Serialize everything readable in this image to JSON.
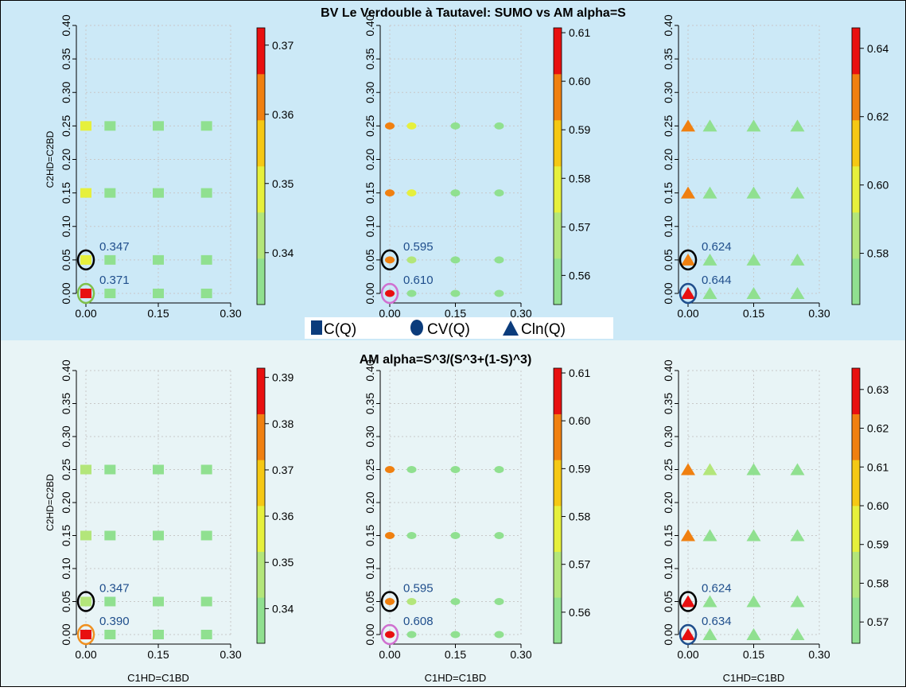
{
  "colors": {
    "top_bg": "#cce9f7",
    "bottom_bg": "#e8f4f6",
    "border": "#000000",
    "annot_text": "#1f4e8c",
    "ramp": [
      "#90e090",
      "#b3e67a",
      "#e6f03c",
      "#f5c814",
      "#f08010",
      "#e81010"
    ]
  },
  "titles": {
    "top": "BV Le Verdouble à Tautavel: SUMO vs AM alpha=S",
    "bottom": "AM alpha=S^3/(S^3+(1-S)^3)"
  },
  "legend": {
    "items": [
      {
        "icon": "square-icon",
        "label": "C(Q)"
      },
      {
        "icon": "circle-icon",
        "label": "CV(Q)"
      },
      {
        "icon": "triangle-icon",
        "label": "Cln(Q)"
      }
    ]
  },
  "chart_data": [
    {
      "id": "top-cq",
      "type": "scatter",
      "marker": "square",
      "ylabel": "C2HD=C2BD",
      "xlabel": "",
      "xticks": [
        "0.00",
        "0.15",
        "0.30"
      ],
      "yticks": [
        "0.00",
        "0.05",
        "0.10",
        "0.15",
        "0.20",
        "0.25",
        "0.30",
        "0.35",
        "0.40"
      ],
      "xlim": [
        0,
        0.3
      ],
      "ylim": [
        0,
        0.4
      ],
      "points": [
        {
          "x": 0,
          "y": 0,
          "c": 5
        },
        {
          "x": 0.05,
          "y": 0,
          "c": 0
        },
        {
          "x": 0.15,
          "y": 0,
          "c": 0
        },
        {
          "x": 0.25,
          "y": 0,
          "c": 0
        },
        {
          "x": 0,
          "y": 0.05,
          "c": 2
        },
        {
          "x": 0.05,
          "y": 0.05,
          "c": 0
        },
        {
          "x": 0.15,
          "y": 0.05,
          "c": 0
        },
        {
          "x": 0.25,
          "y": 0.05,
          "c": 0
        },
        {
          "x": 0,
          "y": 0.15,
          "c": 2
        },
        {
          "x": 0.05,
          "y": 0.15,
          "c": 0
        },
        {
          "x": 0.15,
          "y": 0.15,
          "c": 0
        },
        {
          "x": 0.25,
          "y": 0.15,
          "c": 0
        },
        {
          "x": 0,
          "y": 0.25,
          "c": 2
        },
        {
          "x": 0.05,
          "y": 0.25,
          "c": 0
        },
        {
          "x": 0.15,
          "y": 0.25,
          "c": 0
        },
        {
          "x": 0.25,
          "y": 0.25,
          "c": 0
        }
      ],
      "annotations": [
        {
          "x": 0,
          "y": 0.05,
          "label": "0.347",
          "ring": "#000000"
        },
        {
          "x": 0,
          "y": 0,
          "label": "0.371",
          "ring": "#7fc04a"
        }
      ],
      "colorbar": {
        "ticks": [
          "0.34",
          "0.35",
          "0.36",
          "0.37"
        ],
        "tick_vals": [
          0.34,
          0.35,
          0.36,
          0.37
        ],
        "vmin": 0.3325,
        "vmax": 0.3725
      }
    },
    {
      "id": "top-cvq",
      "type": "scatter",
      "marker": "circle",
      "ylabel": "",
      "xlabel": "",
      "xticks": [
        "0.00",
        "0.15",
        "0.30"
      ],
      "yticks": [
        "0.00",
        "0.05",
        "0.10",
        "0.15",
        "0.20",
        "0.25",
        "0.30",
        "0.35",
        "0.40"
      ],
      "xlim": [
        0,
        0.3
      ],
      "ylim": [
        0,
        0.4
      ],
      "points": [
        {
          "x": 0,
          "y": 0,
          "c": 5
        },
        {
          "x": 0.05,
          "y": 0,
          "c": 0
        },
        {
          "x": 0.15,
          "y": 0,
          "c": 0
        },
        {
          "x": 0.25,
          "y": 0,
          "c": 0
        },
        {
          "x": 0,
          "y": 0.05,
          "c": 4
        },
        {
          "x": 0.05,
          "y": 0.05,
          "c": 1
        },
        {
          "x": 0.15,
          "y": 0.05,
          "c": 0
        },
        {
          "x": 0.25,
          "y": 0.05,
          "c": 0
        },
        {
          "x": 0,
          "y": 0.15,
          "c": 4
        },
        {
          "x": 0.05,
          "y": 0.15,
          "c": 2
        },
        {
          "x": 0.15,
          "y": 0.15,
          "c": 0
        },
        {
          "x": 0.25,
          "y": 0.15,
          "c": 0
        },
        {
          "x": 0,
          "y": 0.25,
          "c": 4
        },
        {
          "x": 0.05,
          "y": 0.25,
          "c": 2
        },
        {
          "x": 0.15,
          "y": 0.25,
          "c": 0
        },
        {
          "x": 0.25,
          "y": 0.25,
          "c": 0
        }
      ],
      "annotations": [
        {
          "x": 0,
          "y": 0.05,
          "label": "0.595",
          "ring": "#000000"
        },
        {
          "x": 0,
          "y": 0,
          "label": "0.610",
          "ring": "#d070d0"
        }
      ],
      "colorbar": {
        "ticks": [
          "0.56",
          "0.57",
          "0.58",
          "0.59",
          "0.60",
          "0.61"
        ],
        "tick_vals": [
          0.56,
          0.57,
          0.58,
          0.59,
          0.6,
          0.61
        ],
        "vmin": 0.554,
        "vmax": 0.611
      }
    },
    {
      "id": "top-clnq",
      "type": "scatter",
      "marker": "triangle",
      "ylabel": "",
      "xlabel": "",
      "xticks": [
        "0.00",
        "0.15",
        "0.30"
      ],
      "yticks": [
        "0.00",
        "0.05",
        "0.10",
        "0.15",
        "0.20",
        "0.25",
        "0.30",
        "0.35",
        "0.40"
      ],
      "xlim": [
        0,
        0.3
      ],
      "ylim": [
        0,
        0.4
      ],
      "points": [
        {
          "x": 0,
          "y": 0,
          "c": 5
        },
        {
          "x": 0.05,
          "y": 0,
          "c": 0
        },
        {
          "x": 0.15,
          "y": 0,
          "c": 0
        },
        {
          "x": 0.25,
          "y": 0,
          "c": 0
        },
        {
          "x": 0,
          "y": 0.05,
          "c": 4
        },
        {
          "x": 0.05,
          "y": 0.05,
          "c": 0
        },
        {
          "x": 0.15,
          "y": 0.05,
          "c": 0
        },
        {
          "x": 0.25,
          "y": 0.05,
          "c": 0
        },
        {
          "x": 0,
          "y": 0.15,
          "c": 4
        },
        {
          "x": 0.05,
          "y": 0.15,
          "c": 0
        },
        {
          "x": 0.15,
          "y": 0.15,
          "c": 0
        },
        {
          "x": 0.25,
          "y": 0.15,
          "c": 0
        },
        {
          "x": 0,
          "y": 0.25,
          "c": 4
        },
        {
          "x": 0.05,
          "y": 0.25,
          "c": 0
        },
        {
          "x": 0.15,
          "y": 0.25,
          "c": 0
        },
        {
          "x": 0.25,
          "y": 0.25,
          "c": 0
        }
      ],
      "annotations": [
        {
          "x": 0,
          "y": 0.05,
          "label": "0.624",
          "ring": "#000000"
        },
        {
          "x": 0,
          "y": 0,
          "label": "0.644",
          "ring": "#1f4e8c"
        }
      ],
      "colorbar": {
        "ticks": [
          "0.58",
          "0.60",
          "0.62",
          "0.64"
        ],
        "tick_vals": [
          0.58,
          0.6,
          0.62,
          0.64
        ],
        "vmin": 0.565,
        "vmax": 0.646
      }
    },
    {
      "id": "bottom-cq",
      "type": "scatter",
      "marker": "square",
      "ylabel": "C2HD=C2BD",
      "xlabel": "C1HD=C1BD",
      "xticks": [
        "0.00",
        "0.15",
        "0.30"
      ],
      "yticks": [
        "0.00",
        "0.05",
        "0.10",
        "0.15",
        "0.20",
        "0.25",
        "0.30",
        "0.35",
        "0.40"
      ],
      "xlim": [
        0,
        0.3
      ],
      "ylim": [
        0,
        0.4
      ],
      "points": [
        {
          "x": 0,
          "y": 0,
          "c": 5
        },
        {
          "x": 0.05,
          "y": 0,
          "c": 0
        },
        {
          "x": 0.15,
          "y": 0,
          "c": 0
        },
        {
          "x": 0.25,
          "y": 0,
          "c": 0
        },
        {
          "x": 0,
          "y": 0.05,
          "c": 1
        },
        {
          "x": 0.05,
          "y": 0.05,
          "c": 0
        },
        {
          "x": 0.15,
          "y": 0.05,
          "c": 0
        },
        {
          "x": 0.25,
          "y": 0.05,
          "c": 0
        },
        {
          "x": 0,
          "y": 0.15,
          "c": 1
        },
        {
          "x": 0.05,
          "y": 0.15,
          "c": 0
        },
        {
          "x": 0.15,
          "y": 0.15,
          "c": 0
        },
        {
          "x": 0.25,
          "y": 0.15,
          "c": 0
        },
        {
          "x": 0,
          "y": 0.25,
          "c": 1
        },
        {
          "x": 0.05,
          "y": 0.25,
          "c": 0
        },
        {
          "x": 0.15,
          "y": 0.25,
          "c": 0
        },
        {
          "x": 0.25,
          "y": 0.25,
          "c": 0
        }
      ],
      "annotations": [
        {
          "x": 0,
          "y": 0.05,
          "label": "0.347",
          "ring": "#000000"
        },
        {
          "x": 0,
          "y": 0,
          "label": "0.390",
          "ring": "#f09020"
        }
      ],
      "colorbar": {
        "ticks": [
          "0.34",
          "0.35",
          "0.36",
          "0.37",
          "0.38",
          "0.39"
        ],
        "tick_vals": [
          0.34,
          0.35,
          0.36,
          0.37,
          0.38,
          0.39
        ],
        "vmin": 0.3325,
        "vmax": 0.392
      }
    },
    {
      "id": "bottom-cvq",
      "type": "scatter",
      "marker": "circle",
      "ylabel": "",
      "xlabel": "C1HD=C1BD",
      "xticks": [
        "0.00",
        "0.15",
        "0.30"
      ],
      "yticks": [
        "0.00",
        "0.05",
        "0.10",
        "0.15",
        "0.20",
        "0.25",
        "0.30",
        "0.35",
        "0.40"
      ],
      "xlim": [
        0,
        0.3
      ],
      "ylim": [
        0,
        0.4
      ],
      "points": [
        {
          "x": 0,
          "y": 0,
          "c": 5
        },
        {
          "x": 0.05,
          "y": 0,
          "c": 0
        },
        {
          "x": 0.15,
          "y": 0,
          "c": 0
        },
        {
          "x": 0.25,
          "y": 0,
          "c": 0
        },
        {
          "x": 0,
          "y": 0.05,
          "c": 4
        },
        {
          "x": 0.05,
          "y": 0.05,
          "c": 1
        },
        {
          "x": 0.15,
          "y": 0.05,
          "c": 0
        },
        {
          "x": 0.25,
          "y": 0.05,
          "c": 0
        },
        {
          "x": 0,
          "y": 0.15,
          "c": 4
        },
        {
          "x": 0.05,
          "y": 0.15,
          "c": 0
        },
        {
          "x": 0.15,
          "y": 0.15,
          "c": 0
        },
        {
          "x": 0.25,
          "y": 0.15,
          "c": 0
        },
        {
          "x": 0,
          "y": 0.25,
          "c": 4
        },
        {
          "x": 0.05,
          "y": 0.25,
          "c": 0
        },
        {
          "x": 0.15,
          "y": 0.25,
          "c": 0
        },
        {
          "x": 0.25,
          "y": 0.25,
          "c": 0
        }
      ],
      "annotations": [
        {
          "x": 0,
          "y": 0.05,
          "label": "0.595",
          "ring": "#000000"
        },
        {
          "x": 0,
          "y": 0,
          "label": "0.608",
          "ring": "#d070d0"
        }
      ],
      "colorbar": {
        "ticks": [
          "0.56",
          "0.57",
          "0.58",
          "0.59",
          "0.60",
          "0.61"
        ],
        "tick_vals": [
          0.56,
          0.57,
          0.58,
          0.59,
          0.6,
          0.61
        ],
        "vmin": 0.5535,
        "vmax": 0.611
      }
    },
    {
      "id": "bottom-clnq",
      "type": "scatter",
      "marker": "triangle",
      "ylabel": "",
      "xlabel": "C1HD=C1BD",
      "xticks": [
        "0.00",
        "0.15",
        "0.30"
      ],
      "yticks": [
        "0.00",
        "0.05",
        "0.10",
        "0.15",
        "0.20",
        "0.25",
        "0.30",
        "0.35",
        "0.40"
      ],
      "xlim": [
        0,
        0.3
      ],
      "ylim": [
        0,
        0.4
      ],
      "points": [
        {
          "x": 0,
          "y": 0,
          "c": 5
        },
        {
          "x": 0.05,
          "y": 0,
          "c": 0
        },
        {
          "x": 0.15,
          "y": 0,
          "c": 0
        },
        {
          "x": 0.25,
          "y": 0,
          "c": 0
        },
        {
          "x": 0,
          "y": 0.05,
          "c": 5
        },
        {
          "x": 0.05,
          "y": 0.05,
          "c": 0
        },
        {
          "x": 0.15,
          "y": 0.05,
          "c": 0
        },
        {
          "x": 0.25,
          "y": 0.05,
          "c": 0
        },
        {
          "x": 0,
          "y": 0.15,
          "c": 4
        },
        {
          "x": 0.05,
          "y": 0.15,
          "c": 0
        },
        {
          "x": 0.15,
          "y": 0.15,
          "c": 0
        },
        {
          "x": 0.25,
          "y": 0.15,
          "c": 0
        },
        {
          "x": 0,
          "y": 0.25,
          "c": 4
        },
        {
          "x": 0.05,
          "y": 0.25,
          "c": 1
        },
        {
          "x": 0.15,
          "y": 0.25,
          "c": 0
        },
        {
          "x": 0.25,
          "y": 0.25,
          "c": 0
        }
      ],
      "annotations": [
        {
          "x": 0,
          "y": 0.05,
          "label": "0.624",
          "ring": "#000000"
        },
        {
          "x": 0,
          "y": 0,
          "label": "0.634",
          "ring": "#1f4e8c"
        }
      ],
      "colorbar": {
        "ticks": [
          "0.57",
          "0.58",
          "0.59",
          "0.60",
          "0.61",
          "0.62",
          "0.63"
        ],
        "tick_vals": [
          0.57,
          0.58,
          0.59,
          0.6,
          0.61,
          0.62,
          0.63
        ],
        "vmin": 0.5645,
        "vmax": 0.6355
      }
    }
  ]
}
